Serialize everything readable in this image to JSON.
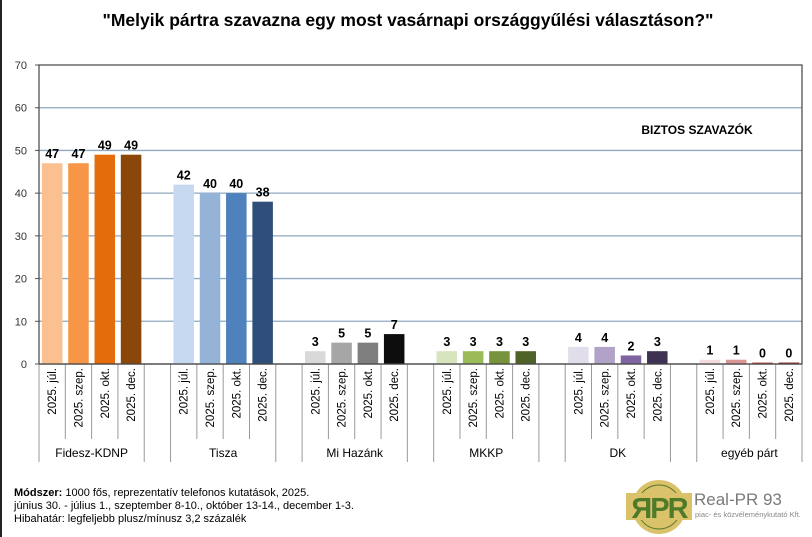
{
  "chart_data": {
    "type": "bar",
    "title": "\"Melyik pártra szavazna egy most vasárnapi országgyűlési választáson?\"",
    "annotation": "BIZTOS SZAVAZÓK",
    "xlabel": "",
    "ylabel": "",
    "ylim": [
      0,
      70
    ],
    "yticks": [
      0,
      10,
      20,
      30,
      40,
      50,
      60,
      70
    ],
    "grid": true,
    "periods": [
      "2025. júl.",
      "2025. szep.",
      "2025. okt.",
      "2025. dec."
    ],
    "groups": [
      {
        "name": "Fidesz-KDNP",
        "values": [
          47,
          47,
          49,
          49
        ],
        "colors": [
          "#FAC090",
          "#F79646",
          "#E46C0A",
          "#8B4609"
        ]
      },
      {
        "name": "Tisza",
        "values": [
          42,
          40,
          40,
          38
        ],
        "colors": [
          "#C6D9F1",
          "#95B3D7",
          "#4F81BD",
          "#2F4E79"
        ]
      },
      {
        "name": "Mi Hazánk",
        "values": [
          3,
          5,
          5,
          7
        ],
        "colors": [
          "#D9D9D9",
          "#A6A6A6",
          "#7F7F7F",
          "#0D0D0D"
        ]
      },
      {
        "name": "MKKP",
        "values": [
          3,
          3,
          3,
          3
        ],
        "colors": [
          "#D7E4BD",
          "#9BBB59",
          "#77933C",
          "#4F6228"
        ]
      },
      {
        "name": "DK",
        "values": [
          4,
          4,
          2,
          3
        ],
        "colors": [
          "#E2DDEA",
          "#B3A2C7",
          "#8064A2",
          "#3F3151"
        ]
      },
      {
        "name": "egyéb párt",
        "values": [
          1,
          1,
          0,
          0
        ],
        "colors": [
          "#F2DCDB",
          "#D99694",
          "#C0504D",
          "#953735"
        ]
      }
    ]
  },
  "footer": {
    "method_label": "Módszer:",
    "method_text": " 1000 fős, reprezentatív telefonos kutatások, 2025.",
    "dates": "június 30. - július 1.,  szeptember 8-10.,  október 13-14.,   december 1-3.",
    "margin": "Hibahatár: legfeljebb plusz/mínusz 3,2 százalék"
  },
  "logo": {
    "mark": "RPR",
    "name": "Real-PR 93",
    "subtitle": "piac- és közvéleménykutató Kft."
  }
}
